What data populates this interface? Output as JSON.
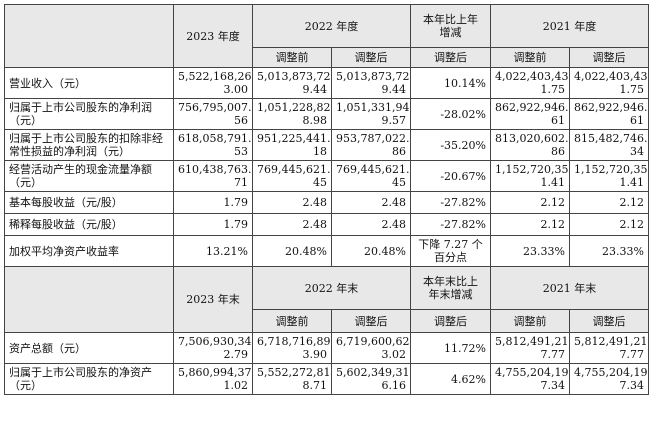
{
  "header": {
    "col_2023": "2023 年度",
    "col_2022": "2022 年度",
    "col_change": "本年比上年\n增减",
    "col_2021": "2021 年度",
    "adjust_before": "调整前",
    "adjust_after": "调整后"
  },
  "rows": [
    {
      "label": "营业收入（元）",
      "v2023": "5,522,168,26\n3.00",
      "v2022_before": "5,013,873,72\n9.44",
      "v2022_after": "5,013,873,72\n9.44",
      "change": "10.14%",
      "v2021_before": "4,022,403,43\n1.75",
      "v2021_after": "4,022,403,43\n1.75"
    },
    {
      "label": "归属于上市公司股东的净利润（元）",
      "v2023": "756,795,007.\n56",
      "v2022_before": "1,051,228,82\n8.98",
      "v2022_after": "1,051,331,94\n9.57",
      "change": "-28.02%",
      "v2021_before": "862,922,946.\n61",
      "v2021_after": "862,922,946.\n61"
    },
    {
      "label": "归属于上市公司股东的扣除非经常性损益的净利润（元）",
      "v2023": "618,058,791.\n53",
      "v2022_before": "951,225,441.\n18",
      "v2022_after": "953,787,022.\n86",
      "change": "-35.20%",
      "v2021_before": "813,020,602.\n86",
      "v2021_after": "815,482,746.\n34"
    },
    {
      "label": "经营活动产生的现金流量净额（元）",
      "v2023": "610,438,763.\n71",
      "v2022_before": "769,445,621.\n45",
      "v2022_after": "769,445,621.\n45",
      "change": "-20.67%",
      "v2021_before": "1,152,720,35\n1.41",
      "v2021_after": "1,152,720,35\n1.41"
    },
    {
      "label": "基本每股收益（元/股）",
      "v2023": "1.79",
      "v2022_before": "2.48",
      "v2022_after": "2.48",
      "change": "-27.82%",
      "v2021_before": "2.12",
      "v2021_after": "2.12"
    },
    {
      "label": "稀释每股收益（元/股）",
      "v2023": "1.79",
      "v2022_before": "2.48",
      "v2022_after": "2.48",
      "change": "-27.82%",
      "v2021_before": "2.12",
      "v2021_after": "2.12"
    },
    {
      "label": "加权平均净资产收益率",
      "v2023": "13.21%",
      "v2022_before": "20.48%",
      "v2022_after": "20.48%",
      "change": "下降 7.27 个\n百分点",
      "v2021_before": "23.33%",
      "v2021_after": "23.33%"
    }
  ],
  "header2": {
    "col_2023": "2023 年末",
    "col_2022": "2022 年末",
    "col_change": "本年末比上\n年末增减",
    "col_2021": "2021 年末",
    "adjust_before": "调整前",
    "adjust_after": "调整后"
  },
  "rows2": [
    {
      "label": "资产总额（元）",
      "v2023": "7,506,930,34\n2.79",
      "v2022_before": "6,718,716,89\n3.90",
      "v2022_after": "6,719,600,62\n3.02",
      "change": "11.72%",
      "v2021_before": "5,812,491,21\n7.77",
      "v2021_after": "5,812,491,21\n7.77"
    },
    {
      "label": "归属于上市公司股东的净资产（元）",
      "v2023": "5,860,994,37\n1.02",
      "v2022_before": "5,552,272,81\n8.71",
      "v2022_after": "5,602,349,31\n6.16",
      "change": "4.62%",
      "v2021_before": "4,755,204,19\n7.34",
      "v2021_after": "4,755,204,19\n7.34"
    }
  ]
}
